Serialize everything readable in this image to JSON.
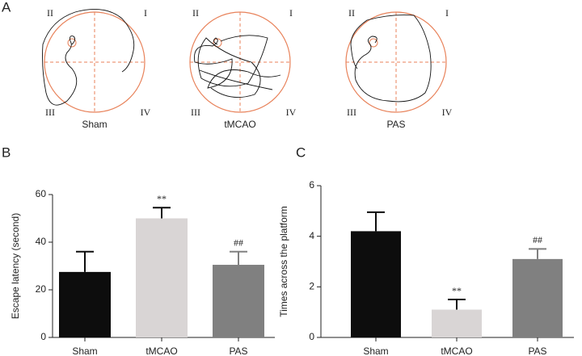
{
  "panel_a": {
    "label": "A",
    "quadrants": [
      "II",
      "I",
      "III",
      "IV"
    ],
    "groups": [
      "Sham",
      "tMCAO",
      "PAS"
    ]
  },
  "chart_data": [
    {
      "type": "bar",
      "panel_label": "B",
      "y_label": "Escape latency (second)",
      "categories": [
        "Sham",
        "tMCAO",
        "PAS"
      ],
      "values": [
        27.5,
        50,
        30.5
      ],
      "errors": [
        8.5,
        4.5,
        5.5
      ],
      "colors": [
        "#0d0d0d",
        "#d9d5d5",
        "#808080"
      ],
      "annotations": [
        null,
        "**",
        "##"
      ],
      "ylim": [
        0,
        60
      ],
      "yticks": [
        0,
        20,
        40,
        60
      ]
    },
    {
      "type": "bar",
      "panel_label": "C",
      "y_label": "Times across the platform",
      "categories": [
        "Sham",
        "tMCAO",
        "PAS"
      ],
      "values": [
        4.2,
        1.1,
        3.1
      ],
      "errors": [
        0.75,
        0.4,
        0.4
      ],
      "colors": [
        "#0d0d0d",
        "#d9d5d5",
        "#808080"
      ],
      "annotations": [
        null,
        "**",
        "##"
      ],
      "ylim": [
        0,
        6
      ],
      "yticks": [
        0,
        2,
        4,
        6
      ]
    }
  ]
}
